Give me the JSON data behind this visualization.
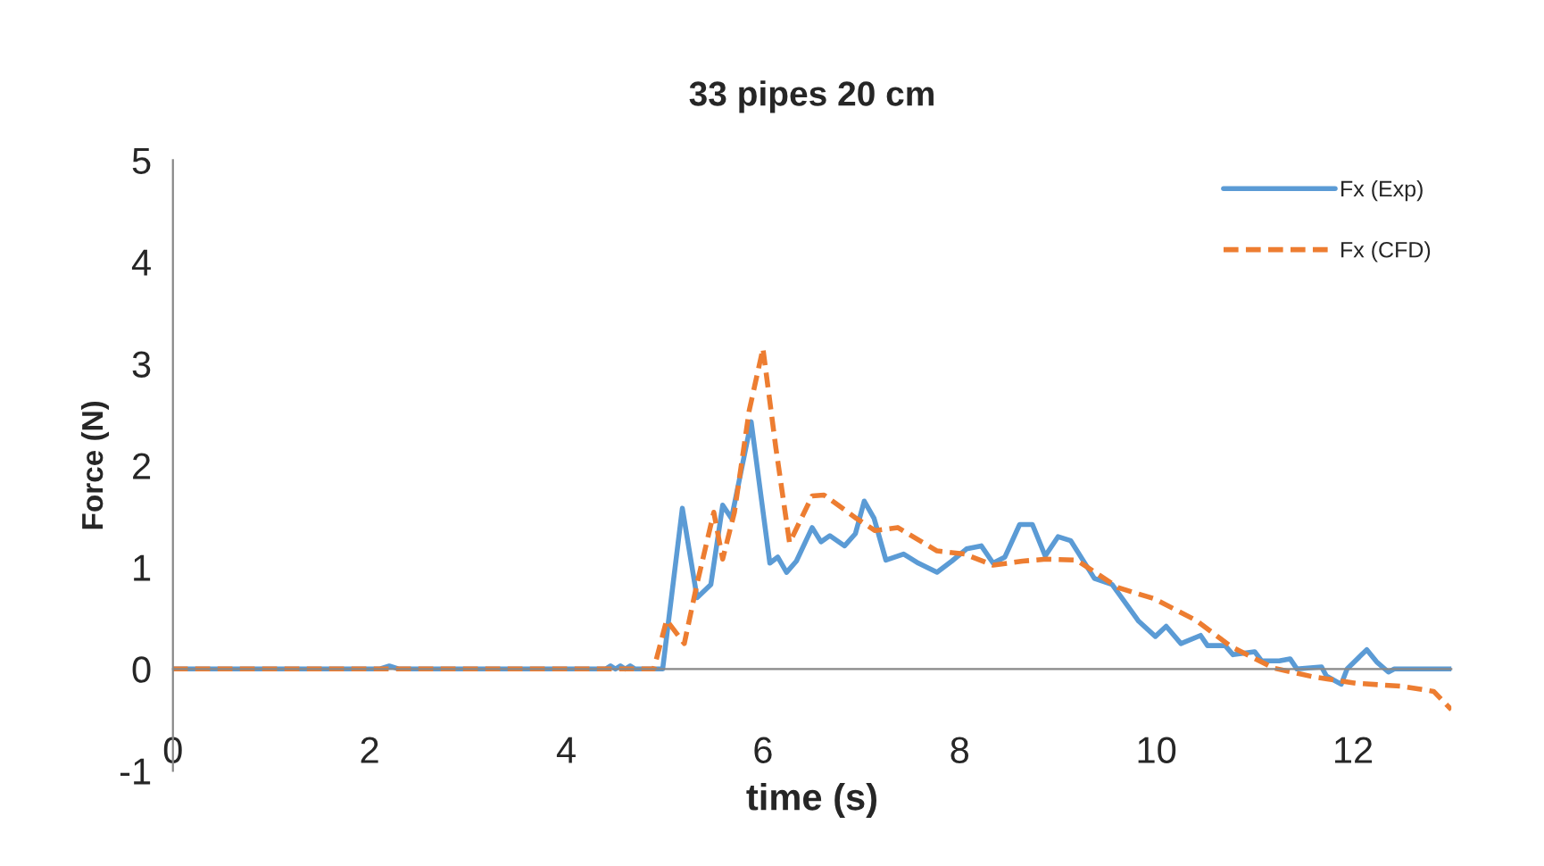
{
  "chart_data": {
    "type": "line",
    "title": "33 pipes 20 cm",
    "xlabel": "time (s)",
    "ylabel": "Force (N)",
    "xlim": [
      0,
      13
    ],
    "xticks": [
      0,
      2,
      4,
      6,
      8,
      10,
      12
    ],
    "ylim": [
      -1,
      5
    ],
    "yticks": [
      -1,
      0,
      1,
      2,
      3,
      4,
      5
    ],
    "legend": "top right",
    "marker": "none",
    "series": [
      {
        "name": "Fx (Exp)",
        "color": "#5b9bd5",
        "line_style": "solid",
        "x": [
          0,
          2.1,
          2.2,
          2.3,
          4.4,
          4.45,
          4.5,
          4.55,
          4.6,
          4.65,
          4.7,
          4.98,
          5.18,
          5.33,
          5.47,
          5.59,
          5.68,
          5.88,
          6.07,
          6.15,
          6.24,
          6.34,
          6.5,
          6.59,
          6.68,
          6.83,
          6.94,
          7.03,
          7.13,
          7.25,
          7.43,
          7.58,
          7.77,
          7.92,
          8.07,
          8.22,
          8.34,
          8.46,
          8.61,
          8.74,
          8.87,
          9.0,
          9.13,
          9.37,
          9.55,
          9.82,
          9.99,
          10.1,
          10.25,
          10.45,
          10.52,
          10.7,
          10.78,
          11.0,
          11.07,
          11.25,
          11.36,
          11.43,
          11.68,
          11.73,
          11.88,
          11.94,
          12.14,
          12.24,
          12.36,
          12.42,
          13
        ],
        "values": [
          0,
          0,
          0.03,
          0,
          0,
          0.03,
          0,
          0.03,
          0,
          0.03,
          0,
          0,
          1.58,
          0.7,
          0.83,
          1.61,
          1.48,
          2.43,
          1.04,
          1.1,
          0.95,
          1.06,
          1.39,
          1.25,
          1.31,
          1.21,
          1.33,
          1.65,
          1.48,
          1.07,
          1.13,
          1.04,
          0.95,
          1.06,
          1.18,
          1.21,
          1.04,
          1.1,
          1.42,
          1.42,
          1.11,
          1.3,
          1.26,
          0.89,
          0.83,
          0.47,
          0.32,
          0.42,
          0.25,
          0.33,
          0.23,
          0.23,
          0.14,
          0.17,
          0.08,
          0.08,
          0.1,
          0,
          0.02,
          -0.07,
          -0.15,
          0,
          0.19,
          0.07,
          -0.03,
          0,
          0
        ]
      },
      {
        "name": "Fx (CFD)",
        "color": "#ed7d31",
        "line_style": "dashed",
        "x": [
          0,
          4.89,
          5.02,
          5.2,
          5.33,
          5.5,
          5.59,
          5.71,
          5.86,
          6.0,
          6.13,
          6.27,
          6.5,
          6.62,
          6.95,
          7.14,
          7.37,
          7.77,
          8.05,
          8.34,
          8.64,
          8.88,
          9.19,
          9.61,
          9.98,
          10.4,
          10.76,
          11.19,
          11.61,
          12.03,
          12.5,
          12.82,
          13.0
        ],
        "values": [
          0,
          0,
          0.48,
          0.25,
          0.84,
          1.54,
          1.08,
          1.54,
          2.54,
          3.15,
          2.18,
          1.24,
          1.7,
          1.71,
          1.48,
          1.36,
          1.39,
          1.16,
          1.13,
          1.02,
          1.06,
          1.08,
          1.07,
          0.8,
          0.69,
          0.48,
          0.22,
          0.01,
          -0.08,
          -0.14,
          -0.17,
          -0.22,
          -0.4
        ]
      }
    ]
  }
}
